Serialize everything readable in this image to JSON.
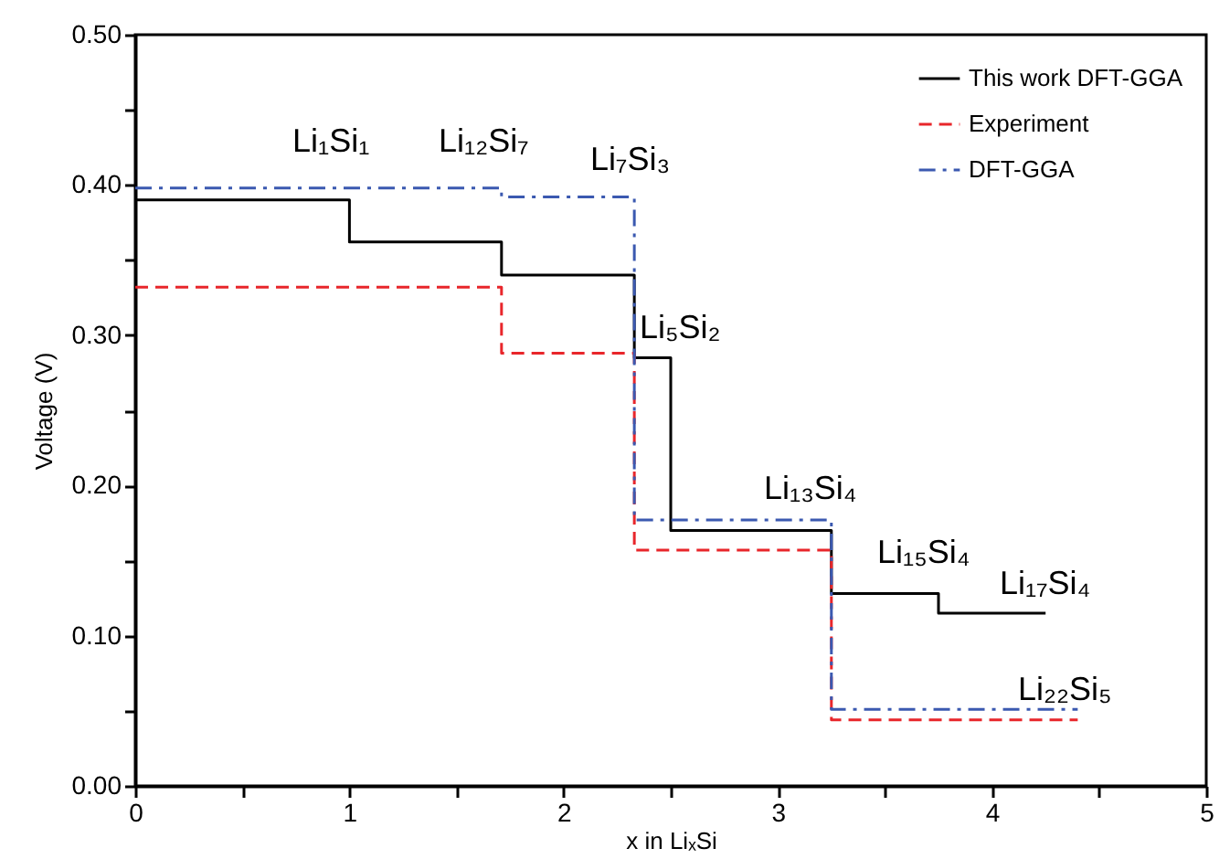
{
  "chart_data": {
    "type": "step",
    "xlabel": "x in LiₓSi",
    "ylabel": "Voltage (V)",
    "xlim": [
      0,
      5
    ],
    "xticks": [
      0,
      {
        "value": 0.5,
        "label": null
      },
      1,
      {
        "value": 1.5,
        "label": null
      },
      2,
      {
        "value": 2.5,
        "label": null
      },
      3,
      {
        "value": 3.5,
        "label": null
      },
      4,
      {
        "value": 4.5,
        "label": null
      },
      5
    ],
    "ylim": [
      0,
      0.5
    ],
    "yticks": [
      {
        "value": 0,
        "label": "0.00"
      },
      {
        "value": 0.05,
        "label": null
      },
      {
        "value": 0.1,
        "label": "0.10"
      },
      {
        "value": 0.15,
        "label": null
      },
      {
        "value": 0.2,
        "label": "0.20"
      },
      {
        "value": 0.25,
        "label": null
      },
      {
        "value": 0.3,
        "label": "0.30"
      },
      {
        "value": 0.35,
        "label": null
      },
      {
        "value": 0.4,
        "label": "0.40"
      },
      {
        "value": 0.45,
        "label": null
      },
      {
        "value": 0.5,
        "label": "0.50"
      }
    ],
    "grid": false,
    "legend": "top right",
    "marker": "none",
    "series": [
      {
        "name": "This work DFT-GGA",
        "color": "#000000",
        "line_style": "solid",
        "x": [
          0,
          1,
          1.71,
          2.33,
          2.5,
          3.25,
          3.75,
          4.25
        ],
        "values": [
          0.39,
          0.362,
          0.34,
          0.285,
          0.17,
          0.128,
          0.115,
          0.115
        ]
      },
      {
        "name": "Experiment",
        "color": "#e8262b",
        "line_style": "dashed",
        "x": [
          0,
          1.71,
          2.33,
          3.25,
          4.4
        ],
        "values": [
          0.332,
          0.288,
          0.157,
          0.044,
          0.044
        ]
      },
      {
        "name": "DFT-GGA",
        "color": "#3b59b0",
        "line_style": "dashdot",
        "x": [
          0,
          1.71,
          2.33,
          3.25,
          4.4
        ],
        "values": [
          0.398,
          0.392,
          0.177,
          0.051,
          0.051
        ]
      }
    ],
    "annotations": [
      "Li₁Si₁",
      "Li₁₂Si₇",
      "Li₇Si₃",
      "Li₅Si₂",
      "Li₁₃Si₄",
      "Li₁₅Si₄",
      "Li₁₇Si₄",
      "Li₂₂Si₅"
    ]
  }
}
